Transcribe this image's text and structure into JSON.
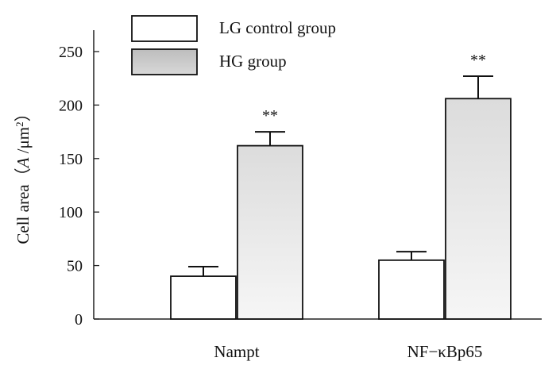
{
  "chart_data": {
    "type": "bar",
    "title": "",
    "xlabel": "",
    "ylabel": "Cell area（A /μm²）",
    "ylabel_parts": {
      "prefix": "Cell area（",
      "italic": "A",
      "mid": " /μm",
      "sup": "2",
      "suffix": "）"
    },
    "ylim": [
      0,
      270
    ],
    "yticks": [
      0,
      50,
      100,
      150,
      200,
      250
    ],
    "ytick_labels": [
      "0",
      "50",
      "100",
      "150",
      "200",
      "250"
    ],
    "categories": [
      "Nampt",
      "NF−κBp65"
    ],
    "series": [
      {
        "name": "LG control group",
        "values": [
          40,
          55
        ],
        "errors": [
          9,
          8
        ],
        "color": "#ffffff",
        "significance": [
          "",
          ""
        ]
      },
      {
        "name": "HG group",
        "values": [
          162,
          206
        ],
        "errors": [
          13,
          21
        ],
        "color": "#e8e8e8",
        "significance": [
          "**",
          "**"
        ]
      }
    ],
    "grid": false,
    "legend_position": "top-left"
  }
}
